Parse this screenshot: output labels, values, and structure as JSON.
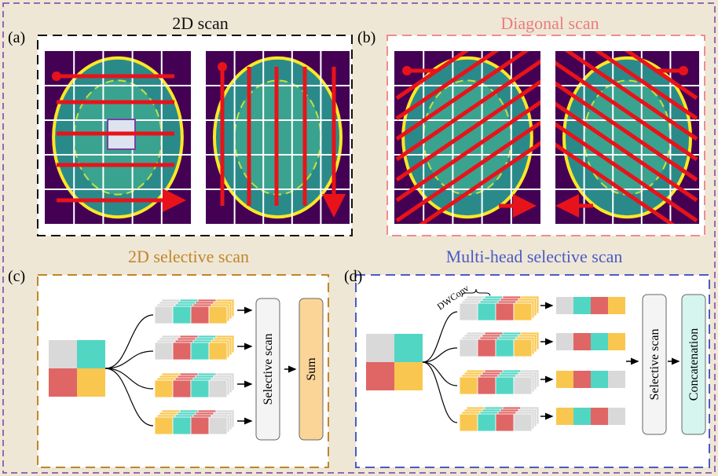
{
  "panels": {
    "a": {
      "label": "(a)",
      "title": "2D scan"
    },
    "b": {
      "label": "(b)",
      "title": "Diagonal scan"
    },
    "c": {
      "label": "(c)",
      "title": "2D selective scan",
      "scan": "Selective scan",
      "sum": "Sum"
    },
    "d": {
      "label": "(d)",
      "title": "Multi-head selective scan",
      "conv": "DWConv",
      "scan": "Selective scan",
      "concat": "Concatenation"
    }
  }
}
